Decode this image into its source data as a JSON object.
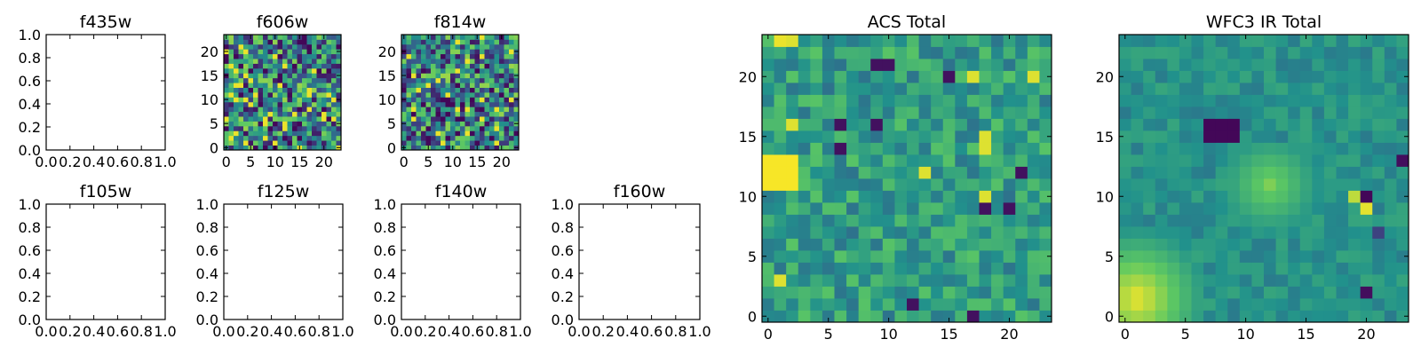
{
  "chart_data": [
    {
      "id": "f435w",
      "type": "heatmap",
      "title": "f435w",
      "empty": true,
      "xlim": [
        0,
        1
      ],
      "ylim": [
        0,
        1
      ],
      "xticks": [
        "0.0",
        "0.2",
        "0.4",
        "0.6",
        "0.8",
        "1.0"
      ],
      "yticks": [
        "0.0",
        "0.2",
        "0.4",
        "0.6",
        "0.8",
        "1.0"
      ]
    },
    {
      "id": "f606w",
      "type": "heatmap",
      "title": "f606w",
      "empty": false,
      "grid": 24,
      "seed": 606,
      "style": "noisy",
      "xlim": [
        -0.5,
        23.5
      ],
      "ylim": [
        -0.5,
        23.5
      ],
      "xticks": [
        "0",
        "5",
        "10",
        "15",
        "20"
      ],
      "yticks": [
        "0",
        "5",
        "10",
        "15",
        "20"
      ]
    },
    {
      "id": "f814w",
      "type": "heatmap",
      "title": "f814w",
      "empty": false,
      "grid": 24,
      "seed": 814,
      "style": "noisy",
      "xlim": [
        -0.5,
        23.5
      ],
      "ylim": [
        -0.5,
        23.5
      ],
      "xticks": [
        "0",
        "5",
        "10",
        "15",
        "20"
      ],
      "yticks": [
        "0",
        "5",
        "10",
        "15",
        "20"
      ]
    },
    {
      "id": "f105w",
      "type": "heatmap",
      "title": "f105w",
      "empty": true,
      "xlim": [
        0,
        1
      ],
      "ylim": [
        0,
        1
      ],
      "xticks": [
        "0.0",
        "0.2",
        "0.4",
        "0.6",
        "0.8",
        "1.0"
      ],
      "yticks": [
        "0.0",
        "0.2",
        "0.4",
        "0.6",
        "0.8",
        "1.0"
      ]
    },
    {
      "id": "f125w",
      "type": "heatmap",
      "title": "f125w",
      "empty": true,
      "xlim": [
        0,
        1
      ],
      "ylim": [
        0,
        1
      ],
      "xticks": [
        "0.0",
        "0.2",
        "0.4",
        "0.6",
        "0.8",
        "1.0"
      ],
      "yticks": [
        "0.0",
        "0.2",
        "0.4",
        "0.6",
        "0.8",
        "1.0"
      ]
    },
    {
      "id": "f140w",
      "type": "heatmap",
      "title": "f140w",
      "empty": true,
      "xlim": [
        0,
        1
      ],
      "ylim": [
        0,
        1
      ],
      "xticks": [
        "0.0",
        "0.2",
        "0.4",
        "0.6",
        "0.8",
        "1.0"
      ],
      "yticks": [
        "0.0",
        "0.2",
        "0.4",
        "0.6",
        "0.8",
        "1.0"
      ]
    },
    {
      "id": "f160w",
      "type": "heatmap",
      "title": "f160w",
      "empty": true,
      "xlim": [
        0,
        1
      ],
      "ylim": [
        0,
        1
      ],
      "xticks": [
        "0.0",
        "0.2",
        "0.4",
        "0.6",
        "0.8",
        "1.0"
      ],
      "yticks": [
        "0.0",
        "0.2",
        "0.4",
        "0.6",
        "0.8",
        "1.0"
      ]
    },
    {
      "id": "acs-total",
      "type": "heatmap",
      "title": "ACS Total",
      "empty": false,
      "grid": 24,
      "seed": 42,
      "style": "acs",
      "xlim": [
        -0.5,
        23.5
      ],
      "ylim": [
        -0.5,
        23.5
      ],
      "xticks": [
        "0",
        "5",
        "10",
        "15",
        "20"
      ],
      "yticks": [
        "0",
        "5",
        "10",
        "15",
        "20"
      ]
    },
    {
      "id": "wfc3-ir-total",
      "type": "heatmap",
      "title": "WFC3 IR Total",
      "empty": false,
      "grid": 24,
      "seed": 77,
      "style": "ir",
      "xlim": [
        -0.5,
        23.5
      ],
      "ylim": [
        -0.5,
        23.5
      ],
      "xticks": [
        "0",
        "5",
        "10",
        "15",
        "20"
      ],
      "yticks": [
        "0",
        "5",
        "10",
        "15",
        "20"
      ]
    }
  ],
  "colors": {
    "colormap": [
      "#440154",
      "#3b528b",
      "#21918c",
      "#5ec962",
      "#fde725"
    ],
    "frame": "#000000",
    "background": "#ffffff"
  }
}
